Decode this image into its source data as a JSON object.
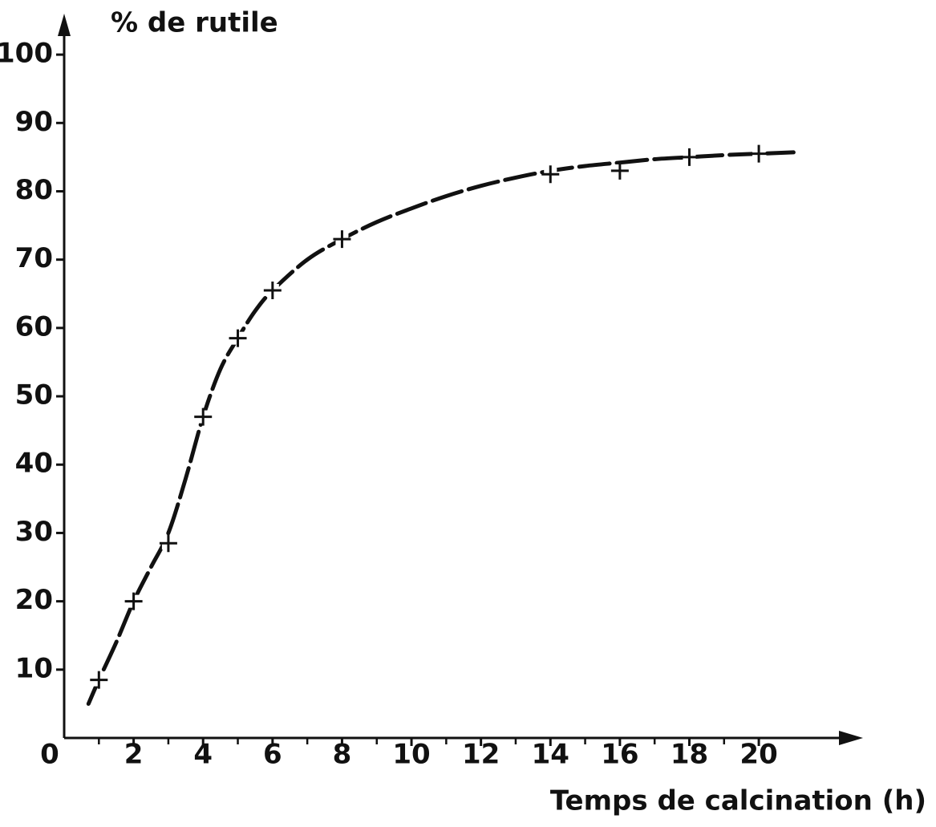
{
  "chart_data": {
    "type": "scatter",
    "ylabel": "% de rutile",
    "xlabel": "Temps de calcination (h)",
    "x": [
      1,
      2,
      3,
      4,
      5,
      6,
      8,
      14,
      16,
      18,
      20
    ],
    "values": [
      8.5,
      20,
      28.5,
      47,
      58.5,
      65.5,
      73,
      82.5,
      83,
      85,
      85.5
    ],
    "curve": {
      "x": [
        0.7,
        1,
        1.5,
        2,
        2.5,
        3,
        3.5,
        4,
        4.5,
        5,
        5.5,
        6,
        7,
        8,
        9,
        10,
        11,
        12,
        13,
        14,
        15,
        16,
        17,
        18,
        19,
        20,
        21
      ],
      "values": [
        5,
        8.5,
        14,
        20,
        25,
        30,
        38,
        47,
        54,
        58.5,
        62.5,
        65.5,
        70,
        73,
        75.5,
        77.5,
        79.3,
        80.8,
        82,
        83,
        83.7,
        84.2,
        84.7,
        85,
        85.3,
        85.5,
        85.7
      ]
    },
    "color": "#111111",
    "xlim": [
      0,
      23
    ],
    "ylim": [
      0,
      106
    ],
    "xticks": [
      0,
      2,
      4,
      6,
      8,
      10,
      12,
      14,
      16,
      18,
      20
    ],
    "xminorticks": [
      1,
      3,
      5,
      7,
      9,
      11,
      13,
      15,
      17,
      19
    ],
    "yticks": [
      10,
      20,
      30,
      40,
      50,
      60,
      70,
      80,
      90,
      100
    ],
    "grid": false
  }
}
